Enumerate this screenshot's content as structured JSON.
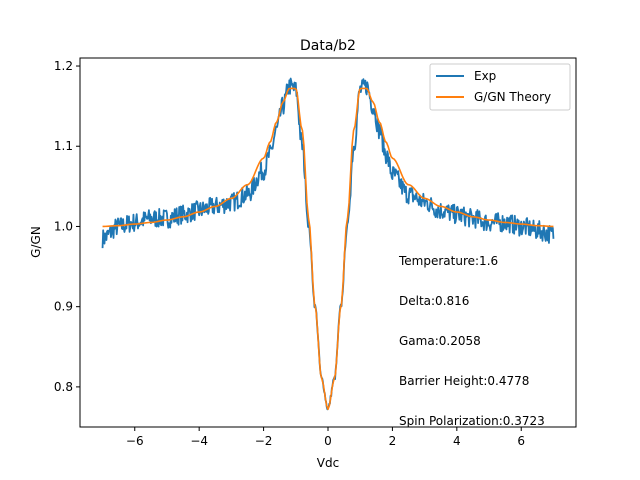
{
  "chart_data": {
    "type": "line",
    "title": "Data/b2",
    "xlabel": "Vdc",
    "ylabel": "G/GN",
    "xlim": [
      -7.7,
      7.7
    ],
    "ylim": [
      0.75,
      1.21
    ],
    "xticks": [
      -6,
      -4,
      -2,
      0,
      2,
      4,
      6
    ],
    "xtick_labels": [
      "−6",
      "−4",
      "−2",
      "0",
      "2",
      "4",
      "6"
    ],
    "yticks": [
      0.8,
      0.9,
      1.0,
      1.1,
      1.2
    ],
    "ytick_labels": [
      "0.8",
      "0.9",
      "1.0",
      "1.1",
      "1.2"
    ],
    "grid": false,
    "legend_position": "top-right",
    "series": [
      {
        "name": "Exp",
        "color": "#1f77b4",
        "x": [
          -7.0,
          -6.5,
          -6.0,
          -5.5,
          -5.0,
          -4.5,
          -4.0,
          -3.5,
          -3.0,
          -2.5,
          -2.0,
          -1.8,
          -1.6,
          -1.4,
          -1.2,
          -1.0,
          -0.8,
          -0.6,
          -0.4,
          -0.2,
          0.0,
          0.2,
          0.4,
          0.6,
          0.8,
          1.0,
          1.2,
          1.4,
          1.6,
          1.8,
          2.0,
          2.5,
          3.0,
          3.5,
          4.0,
          4.5,
          5.0,
          5.5,
          6.0,
          6.5,
          7.0
        ],
        "y": [
          0.985,
          1.0,
          1.005,
          1.01,
          1.01,
          1.015,
          1.02,
          1.025,
          1.03,
          1.04,
          1.07,
          1.09,
          1.12,
          1.15,
          1.175,
          1.17,
          1.1,
          1.0,
          0.9,
          0.81,
          0.773,
          0.81,
          0.9,
          1.0,
          1.1,
          1.17,
          1.175,
          1.15,
          1.12,
          1.09,
          1.065,
          1.04,
          1.03,
          1.02,
          1.015,
          1.01,
          1.005,
          1.005,
          1.0,
          0.995,
          0.99
        ],
        "noise": 0.012
      },
      {
        "name": "G/GN Theory",
        "color": "#ff7f0e",
        "x": [
          -7.0,
          -6.5,
          -6.0,
          -5.5,
          -5.0,
          -4.5,
          -4.0,
          -3.5,
          -3.0,
          -2.5,
          -2.0,
          -1.8,
          -1.6,
          -1.4,
          -1.2,
          -1.0,
          -0.8,
          -0.6,
          -0.4,
          -0.2,
          0.0,
          0.2,
          0.4,
          0.6,
          0.8,
          1.0,
          1.2,
          1.4,
          1.6,
          1.8,
          2.0,
          2.5,
          3.0,
          3.5,
          4.0,
          4.5,
          5.0,
          5.5,
          6.0,
          6.5,
          7.0
        ],
        "y": [
          1.0,
          1.001,
          1.003,
          1.005,
          1.008,
          1.012,
          1.018,
          1.025,
          1.035,
          1.052,
          1.085,
          1.105,
          1.13,
          1.155,
          1.172,
          1.172,
          1.12,
          1.01,
          0.9,
          0.81,
          0.772,
          0.81,
          0.9,
          1.01,
          1.12,
          1.172,
          1.172,
          1.155,
          1.13,
          1.105,
          1.085,
          1.052,
          1.035,
          1.025,
          1.018,
          1.012,
          1.008,
          1.005,
          1.003,
          1.001,
          1.0
        ]
      }
    ],
    "annotations": [
      "Temperature:1.6",
      "Delta:0.816",
      "Gama:0.2058",
      "Barrier Height:0.4778",
      "Spin Polarization:0.3723"
    ]
  }
}
